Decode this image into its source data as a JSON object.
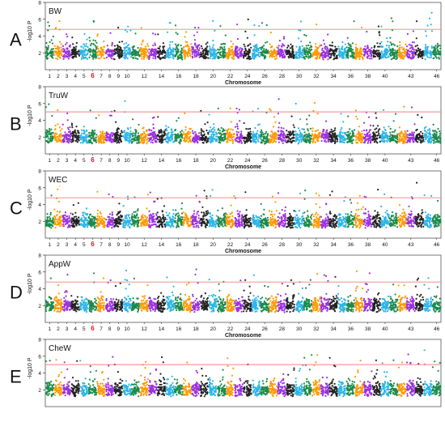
{
  "figure": {
    "xlabel": "Chromosome",
    "ylabel": "-log10 P",
    "x_tick_labels": [
      "1",
      "2",
      "3",
      "4",
      "5",
      "6",
      "7",
      "8",
      "9",
      "10",
      "12",
      "14",
      "16",
      "18",
      "20",
      "22",
      "24",
      "26",
      "28",
      "30",
      "32",
      "34",
      "36",
      "38",
      "40",
      "43",
      "46"
    ],
    "highlighted_tick": "6",
    "highlight_color": "#e8141c",
    "threshold_color": "#f08080",
    "palette": [
      "#1a8a4a",
      "#ff9900",
      "#9b30e0",
      "#222222",
      "#2bb5e8"
    ]
  },
  "chart_data": [
    {
      "panel": "A",
      "trait": "BW",
      "type": "scatter",
      "ylim": [
        0,
        8
      ],
      "yticks": [
        2,
        4,
        6,
        8
      ],
      "threshold": 4.8,
      "x": "chromosome 1-46",
      "show_xaxis": true
    },
    {
      "panel": "B",
      "trait": "TruW",
      "type": "scatter",
      "ylim": [
        0,
        8
      ],
      "yticks": [
        2,
        4,
        6,
        8
      ],
      "threshold": 5.0,
      "x": "chromosome 1-46",
      "show_xaxis": true
    },
    {
      "panel": "C",
      "trait": "WEC",
      "type": "scatter",
      "ylim": [
        0,
        8
      ],
      "yticks": [
        2,
        4,
        6,
        8
      ],
      "threshold": 4.8,
      "x": "chromosome 1-46",
      "show_xaxis": true
    },
    {
      "panel": "D",
      "trait": "AppW",
      "type": "scatter",
      "ylim": [
        0,
        8
      ],
      "yticks": [
        2,
        4,
        6,
        8
      ],
      "threshold": 4.8,
      "x": "chromosome 1-46",
      "show_xaxis": true
    },
    {
      "panel": "E",
      "trait": "CheW",
      "type": "scatter",
      "ylim": [
        0,
        8
      ],
      "yticks": [
        2,
        4,
        6,
        8
      ],
      "threshold": 5.0,
      "x": "chromosome 1-46",
      "show_xaxis": false
    }
  ]
}
